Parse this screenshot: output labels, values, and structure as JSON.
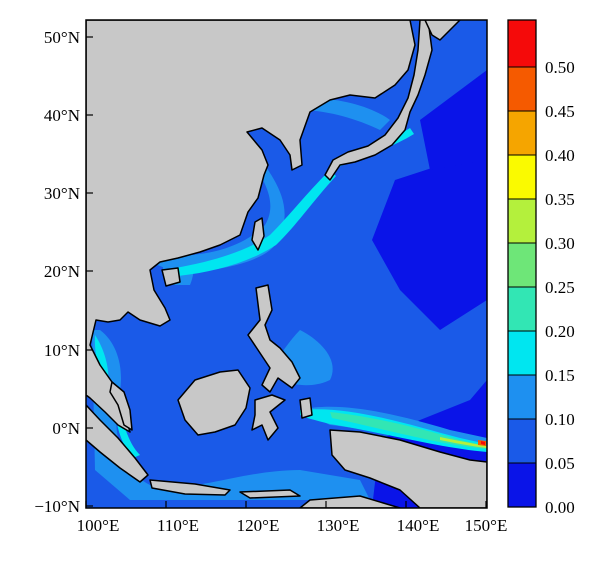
{
  "map": {
    "latitude_ticks": [
      "50°N",
      "40°N",
      "30°N",
      "20°N",
      "10°N",
      "0°N",
      "−10°N"
    ],
    "longitude_ticks": [
      "100°E",
      "110°E",
      "120°E",
      "130°E",
      "140°E",
      "150°E"
    ],
    "land_color": "#c8c8c8",
    "coastline_color": "#000000"
  },
  "colorbar": {
    "levels": [
      "0.00",
      "0.05",
      "0.10",
      "0.15",
      "0.20",
      "0.25",
      "0.30",
      "0.35",
      "0.40",
      "0.45",
      "0.50"
    ],
    "colors": [
      "#0a14e8",
      "#1a5ae8",
      "#1e90f0",
      "#00e6f0",
      "#32e6b4",
      "#6ee678",
      "#b4f03c",
      "#fafa00",
      "#f5a500",
      "#f55a00",
      "#f50a0a"
    ]
  }
}
